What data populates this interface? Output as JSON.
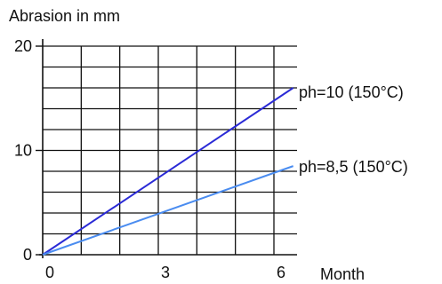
{
  "chart_data": {
    "type": "line",
    "title": "",
    "ylabel": "Abrasion in mm",
    "xlabel": "Month",
    "xlim": [
      0,
      6.6
    ],
    "ylim": [
      0,
      20
    ],
    "x_ticks": [
      0,
      3,
      6
    ],
    "y_ticks": [
      0,
      10,
      20
    ],
    "x_grid": [
      1,
      2,
      3,
      4,
      5,
      6
    ],
    "y_grid": [
      2,
      4,
      6,
      8,
      10,
      12,
      14,
      16,
      18,
      20
    ],
    "grid": true,
    "series": [
      {
        "name": "ph=10 (150°C)",
        "color": "#2a2ad6",
        "x": [
          0,
          6.5
        ],
        "y": [
          0,
          16
        ]
      },
      {
        "name": "ph=8,5 (150°C)",
        "color": "#4a8cf0",
        "x": [
          0,
          6.5
        ],
        "y": [
          0,
          8.5
        ]
      }
    ]
  }
}
